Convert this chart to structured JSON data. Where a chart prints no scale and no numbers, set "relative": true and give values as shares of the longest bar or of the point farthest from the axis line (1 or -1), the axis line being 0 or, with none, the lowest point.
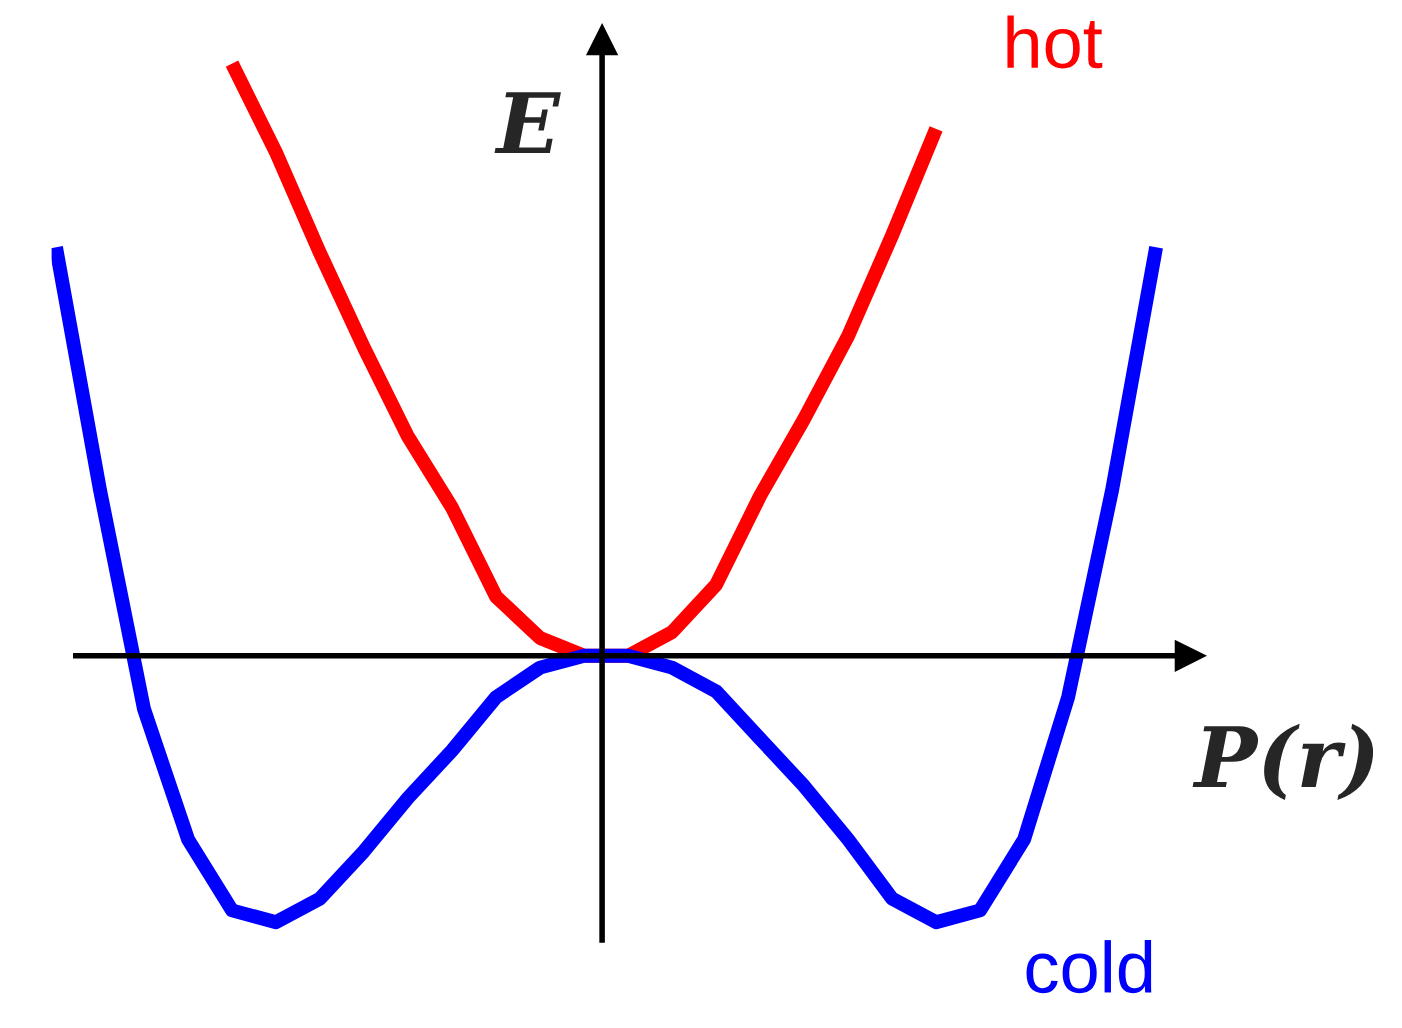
{
  "chart_data": {
    "type": "line",
    "relative": true,
    "xlabel": "P(r)",
    "ylabel": "E",
    "categories": [
      null,
      null,
      null,
      null,
      null,
      null,
      null,
      null,
      null,
      null,
      null,
      null,
      null,
      null,
      null,
      null,
      null,
      null,
      null,
      null,
      null,
      null,
      null,
      null,
      null,
      null
    ],
    "series": [
      {
        "name": "hot",
        "color": "#ff0000",
        "values": [
          null,
          null,
          null,
          null,
          1.0,
          0.85,
          0.68,
          0.52,
          0.37,
          0.25,
          0.1,
          0.03,
          0.0,
          0.0,
          0.04,
          0.12,
          0.27,
          0.4,
          0.54,
          0.71,
          0.89,
          null,
          null,
          null,
          null,
          null
        ]
      },
      {
        "name": "cold",
        "color": "#0000ff",
        "values": [
          0.69,
          0.28,
          -0.09,
          -0.31,
          -0.43,
          -0.45,
          -0.41,
          -0.33,
          -0.24,
          -0.16,
          -0.07,
          -0.02,
          0.0,
          0.0,
          -0.02,
          -0.06,
          -0.14,
          -0.22,
          -0.31,
          -0.41,
          -0.45,
          -0.43,
          -0.31,
          -0.07,
          0.28,
          0.69
        ]
      }
    ],
    "legend": false,
    "marker": "none",
    "line_style": "solid"
  }
}
